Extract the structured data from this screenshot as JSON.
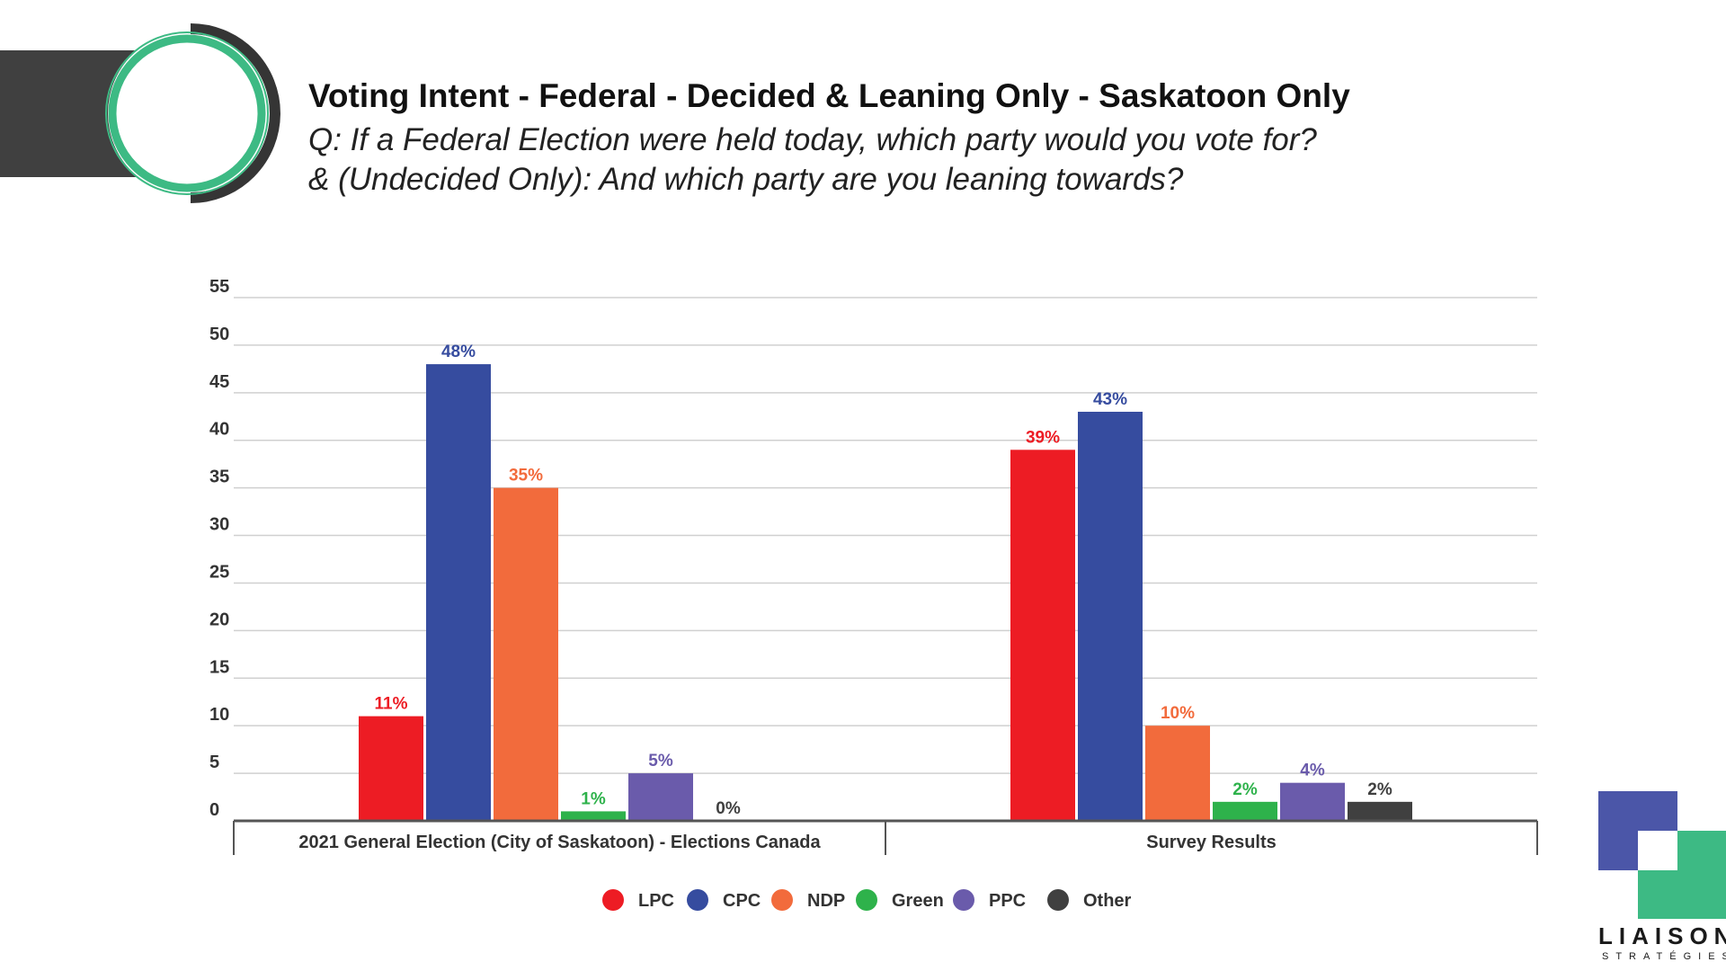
{
  "header": {
    "title": "Voting Intent - Federal - Decided & Leaning Only - Saskatoon Only",
    "subtitle_line1": "Q: If a Federal Election were held today, which party would you vote for?",
    "subtitle_line2": "& (Undecided Only): And which party are you leaning towards?"
  },
  "brand": {
    "name": "LIAISON",
    "sub": "STRATÉGIES"
  },
  "colors": {
    "band": "#404040",
    "ring_green": "#3dba84",
    "ring_dark": "#353535",
    "brand_blue": "#4b56a8",
    "brand_green": "#3dba84"
  },
  "chart_data": {
    "type": "bar",
    "categories": [
      "2021 General Election (City of Saskatoon) - Elections Canada",
      "Survey Results"
    ],
    "series": [
      {
        "name": "LPC",
        "color": "#ed1c24",
        "values": [
          11,
          39
        ],
        "labels": [
          "11%",
          "39%"
        ]
      },
      {
        "name": "CPC",
        "color": "#364c9f",
        "values": [
          48,
          43
        ],
        "labels": [
          "48%",
          "43%"
        ]
      },
      {
        "name": "NDP",
        "color": "#f26b3c",
        "values": [
          35,
          10
        ],
        "labels": [
          "35%",
          "10%"
        ]
      },
      {
        "name": "Green",
        "color": "#2eb24b",
        "values": [
          1,
          2
        ],
        "labels": [
          "1%",
          "2%"
        ]
      },
      {
        "name": "PPC",
        "color": "#6a5bab",
        "values": [
          5,
          4
        ],
        "labels": [
          "5%",
          "4%"
        ]
      },
      {
        "name": "Other",
        "color": "#404040",
        "values": [
          0,
          2
        ],
        "labels": [
          "0%",
          "2%"
        ]
      }
    ],
    "yticks": [
      "0",
      "5",
      "10",
      "15",
      "20",
      "25",
      "30",
      "35",
      "40",
      "45",
      "50",
      "55"
    ],
    "ylim": [
      0,
      55
    ],
    "grid": true,
    "legend": "bottom"
  }
}
